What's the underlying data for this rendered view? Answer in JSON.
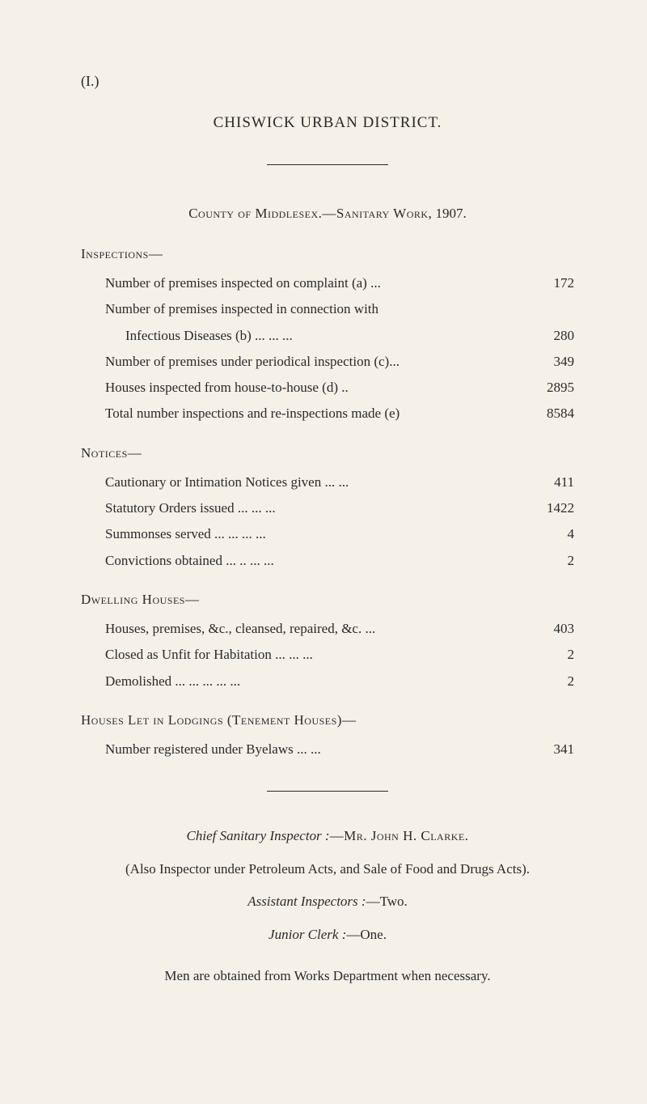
{
  "page_number": "(I.)",
  "title": "CHISWICK URBAN DISTRICT.",
  "subtitle_prefix": "County of Middlesex.—Sanitary Work,",
  "subtitle_year": "1907.",
  "sections": {
    "inspections": {
      "heading": "Inspections—",
      "entries": [
        {
          "label": "Number of premises inspected on complaint (a)   ...",
          "value": "172"
        },
        {
          "label": "Number of premises inspected in connection with",
          "value": ""
        },
        {
          "label_cont": "Infectious Diseases (b)        ...           ...           ...",
          "value": "280",
          "continuation": true
        },
        {
          "label": "Number of premises under periodical inspection (c)...",
          "value": "349"
        },
        {
          "label": "Houses inspected from house-to-house (d)            ..",
          "value": "2895"
        },
        {
          "label": "Total number inspections and re-inspections made (e)",
          "value": "8584"
        }
      ]
    },
    "notices": {
      "heading": "Notices—",
      "entries": [
        {
          "label": "Cautionary or Intimation Notices given   ...           ...",
          "value": "411"
        },
        {
          "label": "Statutory Orders issued           ...           ...           ...",
          "value": "1422"
        },
        {
          "label": "Summonses served        ...           ...           ...           ...",
          "value": "4"
        },
        {
          "label": "Convictions obtained     ...           ..            ...           ...",
          "value": "2"
        }
      ]
    },
    "dwelling": {
      "heading": "Dwelling Houses—",
      "entries": [
        {
          "label": "Houses, premises, &c., cleansed, repaired, &c.     ...",
          "value": "403"
        },
        {
          "label": "Closed as Unfit for Habitation   ...           ...           ...",
          "value": "2"
        },
        {
          "label": "Demolished     ...           ...           ...           ...           ...",
          "value": "2"
        }
      ]
    },
    "houses_let": {
      "heading": "Houses Let in Lodgings (Tenement Houses)—",
      "entries": [
        {
          "label": "Number registered under Byelaws           ...           ...",
          "value": "341"
        }
      ]
    }
  },
  "footer": {
    "chief_inspector_label": "Chief Sanitary Inspector :",
    "chief_inspector_name": "—Mr. John H. Clarke.",
    "also_inspector": "(Also Inspector under Petroleum Acts, and Sale of Food and Drugs Acts).",
    "assistant_label": "Assistant Inspectors :",
    "assistant_value": "—Two.",
    "junior_label": "Junior Clerk :",
    "junior_value": "—One.",
    "men_obtained": "Men are obtained from Works Department when necessary."
  }
}
